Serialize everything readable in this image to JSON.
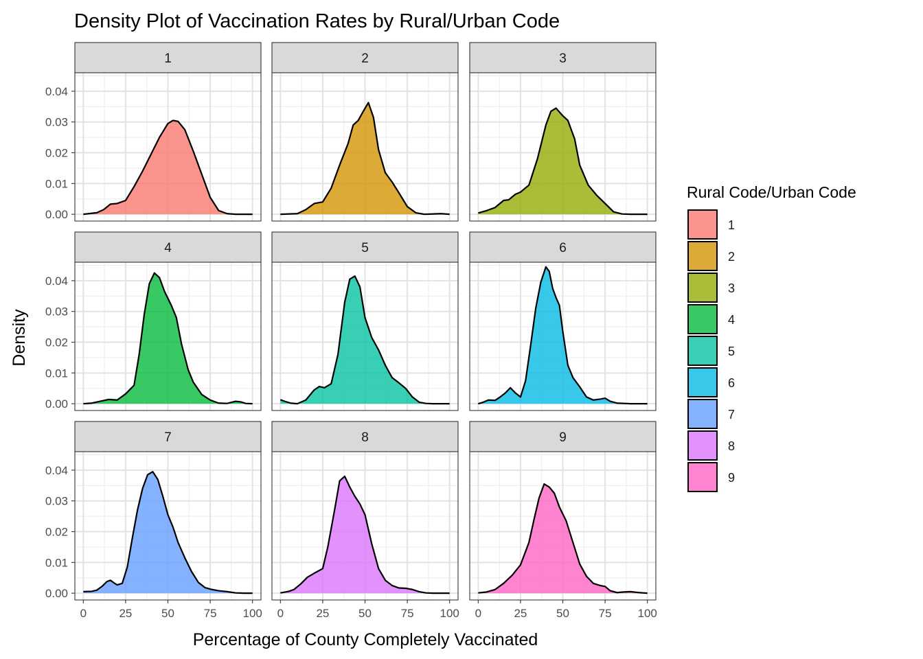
{
  "chart_data": {
    "type": "area",
    "title": "Density Plot of Vaccination Rates by Rural/Urban Code",
    "xlabel": "Percentage of County Completely Vaccinated",
    "ylabel": "Density",
    "xlim": [
      -5,
      105
    ],
    "ylim": [
      -0.0022,
      0.046
    ],
    "x_ticks": [
      0,
      25,
      50,
      75,
      100
    ],
    "x_tick_labels": [
      "0",
      "25",
      "50",
      "75",
      "100"
    ],
    "y_ticks": [
      0,
      0.01,
      0.02,
      0.03,
      0.04
    ],
    "y_tick_labels": [
      "0.00",
      "0.01",
      "0.02",
      "0.03",
      "0.04"
    ],
    "grid": true,
    "legend": {
      "title": "Rural Code/Urban Code",
      "position": "right"
    },
    "facets": [
      "1",
      "2",
      "3",
      "4",
      "5",
      "6",
      "7",
      "8",
      "9"
    ],
    "series": [
      {
        "name": "1",
        "color": "#F8766D",
        "x": [
          0,
          8,
          12,
          16,
          20,
          25,
          30,
          35,
          40,
          45,
          50,
          53,
          56,
          60,
          65,
          70,
          75,
          80,
          85,
          90,
          100
        ],
        "y": [
          0.0,
          0.0005,
          0.0015,
          0.0033,
          0.0035,
          0.0045,
          0.009,
          0.014,
          0.0195,
          0.025,
          0.0295,
          0.0305,
          0.0302,
          0.0275,
          0.0205,
          0.013,
          0.0055,
          0.0012,
          0.0002,
          0.0,
          0.0
        ]
      },
      {
        "name": "2",
        "color": "#D39200",
        "x": [
          0,
          10,
          15,
          20,
          25,
          30,
          35,
          40,
          43,
          46,
          49,
          52,
          55,
          58,
          62,
          66,
          70,
          75,
          80,
          85,
          95,
          100
        ],
        "y": [
          0.0,
          0.0002,
          0.0015,
          0.0035,
          0.004,
          0.0085,
          0.016,
          0.023,
          0.029,
          0.0305,
          0.0335,
          0.0363,
          0.0315,
          0.021,
          0.0135,
          0.0105,
          0.007,
          0.0025,
          0.0005,
          0.0,
          0.0002,
          0.0
        ]
      },
      {
        "name": "3",
        "color": "#93AA00",
        "x": [
          0,
          5,
          10,
          15,
          18,
          22,
          25,
          30,
          35,
          40,
          43,
          46,
          50,
          53,
          57,
          60,
          65,
          70,
          75,
          80,
          85,
          90,
          100
        ],
        "y": [
          0.0004,
          0.0012,
          0.0022,
          0.0045,
          0.0047,
          0.0065,
          0.0072,
          0.0095,
          0.018,
          0.029,
          0.0335,
          0.0345,
          0.032,
          0.0305,
          0.0245,
          0.016,
          0.0095,
          0.0062,
          0.0035,
          0.0008,
          0.0001,
          0.0,
          0.0
        ]
      },
      {
        "name": "4",
        "color": "#00BA38",
        "x": [
          0,
          5,
          10,
          15,
          20,
          25,
          30,
          33,
          36,
          39,
          42,
          45,
          48,
          52,
          55,
          58,
          62,
          65,
          70,
          75,
          80,
          85,
          90,
          93,
          96,
          100
        ],
        "y": [
          0.0,
          0.0002,
          0.0008,
          0.0014,
          0.0012,
          0.0032,
          0.006,
          0.016,
          0.029,
          0.039,
          0.0425,
          0.041,
          0.0365,
          0.032,
          0.028,
          0.0195,
          0.011,
          0.007,
          0.003,
          0.0012,
          0.0002,
          0.0001,
          0.0008,
          0.0006,
          0.0001,
          0.0
        ]
      },
      {
        "name": "5",
        "color": "#00C19F",
        "x": [
          0,
          3,
          6,
          10,
          15,
          20,
          23,
          26,
          30,
          34,
          38,
          41,
          44,
          47,
          50,
          54,
          58,
          62,
          66,
          70,
          74,
          78,
          82,
          86,
          90,
          100
        ],
        "y": [
          0.0013,
          0.0007,
          0.0002,
          0.0,
          0.0012,
          0.0045,
          0.0056,
          0.0052,
          0.0065,
          0.016,
          0.033,
          0.0405,
          0.0415,
          0.038,
          0.028,
          0.0215,
          0.0175,
          0.0125,
          0.0085,
          0.0068,
          0.005,
          0.0022,
          0.0005,
          0.0001,
          0.0,
          0.0
        ]
      },
      {
        "name": "6",
        "color": "#00B9E3",
        "x": [
          0,
          3,
          6,
          10,
          13,
          16,
          19,
          22,
          25,
          28,
          31,
          34,
          37,
          40,
          42,
          44,
          46,
          48,
          50,
          53,
          56,
          60,
          64,
          68,
          72,
          75,
          78,
          82,
          90,
          100
        ],
        "y": [
          0.0,
          0.0005,
          0.0012,
          0.0011,
          0.0022,
          0.0035,
          0.0052,
          0.0035,
          0.0022,
          0.0075,
          0.019,
          0.031,
          0.0395,
          0.0445,
          0.043,
          0.0375,
          0.0345,
          0.032,
          0.0235,
          0.0125,
          0.0085,
          0.0055,
          0.0022,
          0.0012,
          0.0015,
          0.0018,
          0.0008,
          0.0002,
          0.0,
          0.0
        ]
      },
      {
        "name": "7",
        "color": "#619CFF",
        "x": [
          0,
          5,
          8,
          11,
          14,
          16,
          18,
          20,
          23,
          26,
          29,
          32,
          35,
          38,
          41,
          44,
          47,
          50,
          53,
          56,
          60,
          64,
          68,
          72,
          76,
          80,
          85,
          90,
          95,
          100
        ],
        "y": [
          0.0005,
          0.0006,
          0.001,
          0.0022,
          0.0038,
          0.0042,
          0.0034,
          0.0027,
          0.0032,
          0.0085,
          0.018,
          0.027,
          0.034,
          0.0385,
          0.0395,
          0.037,
          0.0315,
          0.0255,
          0.0215,
          0.0165,
          0.0115,
          0.007,
          0.0035,
          0.0018,
          0.0012,
          0.0008,
          0.0005,
          0.0001,
          0.0,
          0.0
        ]
      },
      {
        "name": "8",
        "color": "#DB72FB",
        "x": [
          0,
          5,
          8,
          12,
          16,
          20,
          25,
          28,
          32,
          35,
          38,
          41,
          44,
          47,
          50,
          54,
          58,
          62,
          66,
          70,
          74,
          78,
          82,
          86,
          90,
          100
        ],
        "y": [
          0.0001,
          0.0006,
          0.0012,
          0.003,
          0.0052,
          0.0065,
          0.008,
          0.015,
          0.027,
          0.0365,
          0.038,
          0.0345,
          0.0315,
          0.029,
          0.0255,
          0.016,
          0.008,
          0.0042,
          0.0025,
          0.0017,
          0.0016,
          0.0012,
          0.0005,
          0.0001,
          0.0,
          0.0
        ]
      },
      {
        "name": "9",
        "color": "#FF61C3",
        "x": [
          0,
          5,
          10,
          15,
          20,
          25,
          30,
          33,
          36,
          39,
          42,
          45,
          48,
          52,
          56,
          60,
          64,
          68,
          72,
          75,
          78,
          82,
          86,
          90,
          95,
          100
        ],
        "y": [
          0.0001,
          0.0004,
          0.0012,
          0.0032,
          0.0058,
          0.0092,
          0.0165,
          0.024,
          0.031,
          0.0355,
          0.0345,
          0.0325,
          0.028,
          0.0235,
          0.0165,
          0.0095,
          0.0055,
          0.0032,
          0.0025,
          0.0022,
          0.0008,
          0.0002,
          0.0004,
          0.0005,
          0.0002,
          0.0
        ]
      }
    ]
  }
}
